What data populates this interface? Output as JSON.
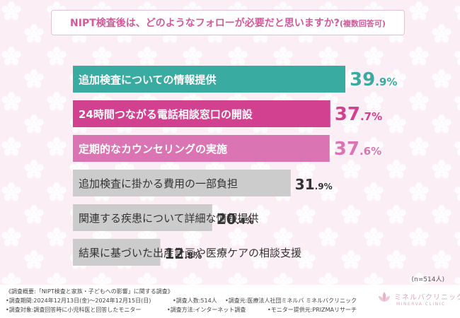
{
  "question": {
    "text": "NIPT検査後は、どのようなフォローが必要だと思いますか?",
    "note": "(複数回答可)"
  },
  "chart_data": {
    "type": "bar",
    "orientation": "horizontal",
    "categories": [
      "追加検査についての情報提供",
      "24時間つながる電話相談窓口の開設",
      "定期的なカウンセリングの実施",
      "追加検査に掛かる費用の一部負担",
      "関連する疾患について詳細な情報提供",
      "結果に基づいた出産計画や医療ケアの相談支援"
    ],
    "values": [
      39.9,
      37.7,
      37.6,
      31.9,
      20.4,
      12.8
    ],
    "value_labels": [
      {
        "int": "39",
        "dec": ".9",
        "unit": "%"
      },
      {
        "int": "37",
        "dec": ".7",
        "unit": "%"
      },
      {
        "int": "37",
        "dec": ".6",
        "unit": "%"
      },
      {
        "int": "31",
        "dec": ".9",
        "unit": "%"
      },
      {
        "int": "20",
        "dec": ".4",
        "unit": "%"
      },
      {
        "int": "12",
        "dec": ".8",
        "unit": "%"
      }
    ],
    "colors": [
      "#3aaba0",
      "#d2418f",
      "#db74b3",
      "#cccccc",
      "#cccccc",
      "#cccccc"
    ],
    "label_colors": [
      "#ffffff",
      "#ffffff",
      "#ffffff",
      "#333333",
      "#333333",
      "#333333"
    ],
    "value_colors": [
      "#3aaba0",
      "#d2418f",
      "#db74b3",
      "#333333",
      "#333333",
      "#333333"
    ],
    "xlim": [
      0,
      39.9
    ]
  },
  "sample_size": "(n=514人)",
  "footer": {
    "survey_title": "《調査概要:「NIPT検査と家族・子どもへの影響」に関する調査》",
    "period": "•調査期間:2024年12月13日(金)〜2024年12月15日(日)",
    "respondents": "•調査人数:514人",
    "conductor": "•調査元:医療法人社団ミネルバ ミネルバクリニック",
    "target": "•調査対象:調査回答時に小児科医と回答したモニター",
    "method": "•調査方法:インターネット調査",
    "provider": "•モニター提供元:PRIZMAリサーチ"
  },
  "logo": {
    "jp": "ミネルバクリニック",
    "en": "MINERVA CLINIC",
    "icon": "lotus-logo-icon"
  }
}
